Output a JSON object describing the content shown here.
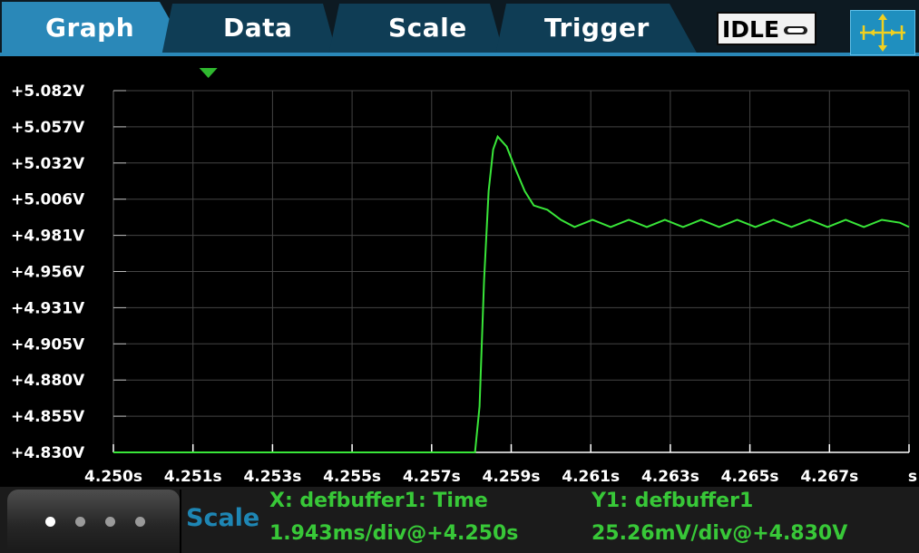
{
  "tabs": [
    {
      "label": "Graph",
      "active": true
    },
    {
      "label": "Data",
      "active": false
    },
    {
      "label": "Scale",
      "active": false
    },
    {
      "label": "Trigger",
      "active": false
    }
  ],
  "status": {
    "text": "IDLE"
  },
  "toolbar": {
    "pan_zoom_icon": "pan-zoom-arrows-icon"
  },
  "colors": {
    "tab_active": "#2a88b8",
    "tab_inactive": "#0f3d55",
    "trace": "#39e639",
    "grid": "#444444",
    "info_text": "#38c838",
    "scale_text": "#1e86b4"
  },
  "chart_data": {
    "type": "line",
    "title": "",
    "xlabel": "",
    "ylabel": "",
    "xlim": [
      4.25,
      4.2676
    ],
    "ylim": [
      4.83,
      5.082
    ],
    "y_ticks": [
      "+5.082V",
      "+5.057V",
      "+5.032V",
      "+5.006V",
      "+4.981V",
      "+4.956V",
      "+4.931V",
      "+4.905V",
      "+4.880V",
      "+4.855V",
      "+4.830V"
    ],
    "x_ticks": [
      "4.250s",
      "4.251s",
      "4.253s",
      "4.255s",
      "4.257s",
      "4.259s",
      "4.261s",
      "4.263s",
      "4.265s",
      "4.267s",
      "s"
    ],
    "series": [
      {
        "x": [
          4.25,
          4.258,
          4.2581,
          4.2582,
          4.2583,
          4.2584,
          4.2585,
          4.2587,
          4.2589,
          4.2591,
          4.2593,
          4.2596,
          4.2599,
          4.2602,
          4.2606,
          4.261,
          4.2614,
          4.2618,
          4.2622,
          4.2626,
          4.263,
          4.2634,
          4.2638,
          4.2642,
          4.2646,
          4.265,
          4.2654,
          4.2658,
          4.2662,
          4.2666,
          4.267,
          4.2674,
          4.2676
        ],
        "y": [
          4.83,
          4.83,
          4.862,
          4.95,
          5.012,
          5.041,
          5.05,
          5.043,
          5.027,
          5.012,
          5.002,
          4.999,
          4.992,
          4.987,
          4.992,
          4.987,
          4.992,
          4.987,
          4.992,
          4.987,
          4.992,
          4.987,
          4.992,
          4.987,
          4.992,
          4.987,
          4.992,
          4.987,
          4.992,
          4.987,
          4.992,
          4.99,
          4.987
        ]
      }
    ],
    "marker": {
      "x": 4.2521
    }
  },
  "bottom": {
    "pager_dots": 4,
    "active_dot": 0,
    "scale_label": "Scale",
    "x_info_title": "X: defbuffer1: Time",
    "x_info_value": "1.943ms/div@+4.250s",
    "y_info_title": "Y1: defbuffer1",
    "y_info_value": "25.26mV/div@+4.830V"
  }
}
